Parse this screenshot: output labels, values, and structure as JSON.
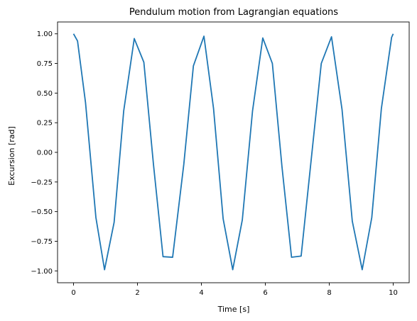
{
  "chart_data": {
    "type": "line",
    "title": "Pendulum motion from Lagrangian equations",
    "xlabel": "Time [s]",
    "ylabel": "Excursion [rad]",
    "xlim": [
      -0.5,
      10.5
    ],
    "ylim": [
      -1.1,
      1.1
    ],
    "xticks": [
      0,
      2,
      4,
      6,
      8,
      10
    ],
    "xtick_labels": [
      "0",
      "2",
      "4",
      "6",
      "8",
      "10"
    ],
    "yticks": [
      1.0,
      0.75,
      0.5,
      0.25,
      0.0,
      -0.25,
      -0.5,
      -0.75,
      -1.0
    ],
    "ytick_labels": [
      "1.00",
      "0.75",
      "0.50",
      "0.25",
      "0.00",
      "−0.25",
      "−0.50",
      "−0.75",
      "−1.00"
    ],
    "grid": false,
    "line_color": "#1f77b4",
    "series": [
      {
        "x": [
          0.0,
          0.125,
          0.375,
          0.7,
          0.97,
          1.27,
          1.57,
          1.9,
          2.2,
          2.5,
          2.8,
          3.1,
          3.45,
          3.75,
          4.08,
          4.38,
          4.68,
          4.98,
          5.28,
          5.6,
          5.92,
          6.22,
          6.52,
          6.82,
          7.12,
          7.42,
          7.75,
          8.07,
          8.4,
          8.72,
          9.03,
          9.33,
          9.63,
          9.95,
          10.0
        ],
        "y": [
          1.0,
          0.94,
          0.42,
          -0.55,
          -0.99,
          -0.59,
          0.35,
          0.96,
          0.76,
          -0.1,
          -0.88,
          -0.885,
          -0.1,
          0.73,
          0.98,
          0.37,
          -0.56,
          -0.99,
          -0.57,
          0.35,
          0.965,
          0.75,
          -0.12,
          -0.885,
          -0.875,
          -0.1,
          0.75,
          0.975,
          0.36,
          -0.58,
          -0.99,
          -0.55,
          0.37,
          0.97,
          1.0
        ]
      }
    ]
  }
}
